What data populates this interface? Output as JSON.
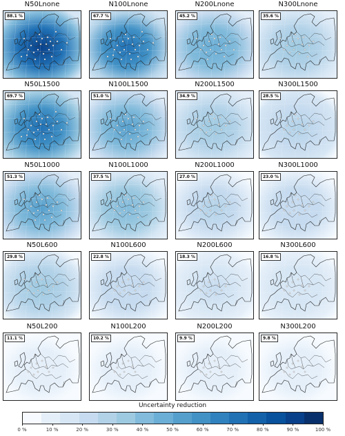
{
  "panels": [
    {
      "title": "N50Lnone",
      "pct": "88.1 %"
    },
    {
      "title": "N100Lnone",
      "pct": "67.7 %"
    },
    {
      "title": "N200Lnone",
      "pct": "45.2 %"
    },
    {
      "title": "N300Lnone",
      "pct": "35.6 %"
    },
    {
      "title": "N50L1500",
      "pct": "69.7 %"
    },
    {
      "title": "N100L1500",
      "pct": "51.0 %"
    },
    {
      "title": "N200L1500",
      "pct": "34.9 %"
    },
    {
      "title": "N300L1500",
      "pct": "28.5 %"
    },
    {
      "title": "N50L1000",
      "pct": "51.3 %"
    },
    {
      "title": "N100L1000",
      "pct": "37.5 %"
    },
    {
      "title": "N200L1000",
      "pct": "27.0 %"
    },
    {
      "title": "N300L1000",
      "pct": "23.0 %"
    },
    {
      "title": "N50L600",
      "pct": "29.8 %"
    },
    {
      "title": "N100L600",
      "pct": "22.8 %"
    },
    {
      "title": "N200L600",
      "pct": "18.3 %"
    },
    {
      "title": "N300L600",
      "pct": "16.8 %"
    },
    {
      "title": "N50L200",
      "pct": "11.1 %"
    },
    {
      "title": "N100L200",
      "pct": "10.2 %"
    },
    {
      "title": "N200L200",
      "pct": "9.9 %"
    },
    {
      "title": "N300L200",
      "pct": "9.8 %"
    }
  ],
  "colorbar": {
    "title": "Uncertainty reduction",
    "tick_labels": [
      "0 %",
      "10 %",
      "20 %",
      "30 %",
      "40 %",
      "50 %",
      "60 %",
      "70 %",
      "80 %",
      "90 %",
      "100 %"
    ],
    "colors": [
      "#f7fbff",
      "#e5eff9",
      "#d6e6f4",
      "#c6dbef",
      "#b2d2e8",
      "#9ecae1",
      "#82bbdb",
      "#6baed6",
      "#559fcd",
      "#4292c6",
      "#3082be",
      "#2171b5",
      "#1361a9",
      "#08519c",
      "#08408a",
      "#08306b"
    ]
  }
}
